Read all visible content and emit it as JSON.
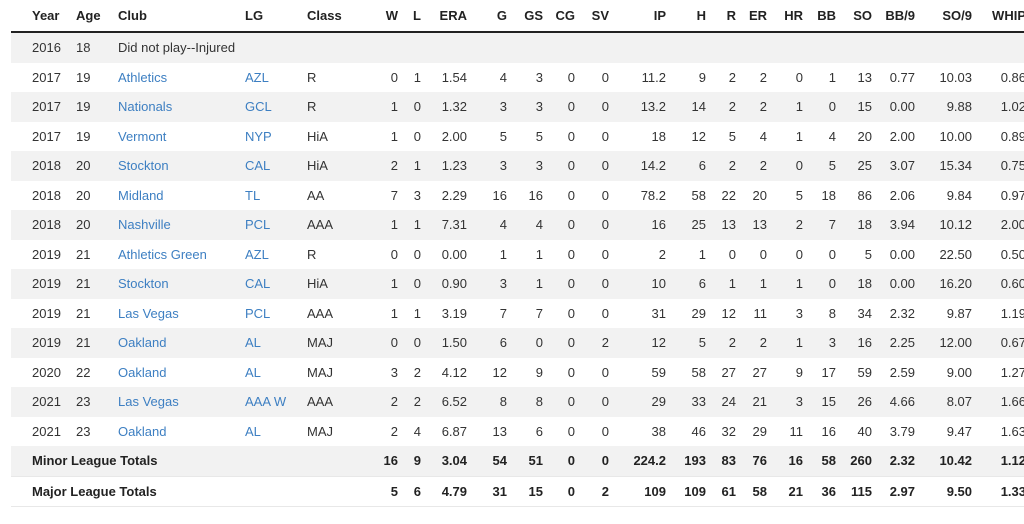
{
  "columns": [
    "Year",
    "Age",
    "Club",
    "LG",
    "Class",
    "W",
    "L",
    "ERA",
    "G",
    "GS",
    "CG",
    "SV",
    "IP",
    "H",
    "R",
    "ER",
    "HR",
    "BB",
    "SO",
    "BB/9",
    "SO/9",
    "WHIP"
  ],
  "rows": [
    {
      "cells": [
        "2016",
        "18",
        "Did not play--Injured",
        "",
        "",
        "",
        "",
        "",
        "",
        "",
        "",
        "",
        "",
        "",
        "",
        "",
        "",
        "",
        "",
        "",
        "",
        ""
      ],
      "linked": false
    },
    {
      "cells": [
        "2017",
        "19",
        "Athletics",
        "AZL",
        "R",
        "0",
        "1",
        "1.54",
        "4",
        "3",
        "0",
        "0",
        "11.2",
        "9",
        "2",
        "2",
        "0",
        "1",
        "13",
        "0.77",
        "10.03",
        "0.86"
      ],
      "linked": true
    },
    {
      "cells": [
        "2017",
        "19",
        "Nationals",
        "GCL",
        "R",
        "1",
        "0",
        "1.32",
        "3",
        "3",
        "0",
        "0",
        "13.2",
        "14",
        "2",
        "2",
        "1",
        "0",
        "15",
        "0.00",
        "9.88",
        "1.02"
      ],
      "linked": true
    },
    {
      "cells": [
        "2017",
        "19",
        "Vermont",
        "NYP",
        "HiA",
        "1",
        "0",
        "2.00",
        "5",
        "5",
        "0",
        "0",
        "18",
        "12",
        "5",
        "4",
        "1",
        "4",
        "20",
        "2.00",
        "10.00",
        "0.89"
      ],
      "linked": true
    },
    {
      "cells": [
        "2018",
        "20",
        "Stockton",
        "CAL",
        "HiA",
        "2",
        "1",
        "1.23",
        "3",
        "3",
        "0",
        "0",
        "14.2",
        "6",
        "2",
        "2",
        "0",
        "5",
        "25",
        "3.07",
        "15.34",
        "0.75"
      ],
      "linked": true
    },
    {
      "cells": [
        "2018",
        "20",
        "Midland",
        "TL",
        "AA",
        "7",
        "3",
        "2.29",
        "16",
        "16",
        "0",
        "0",
        "78.2",
        "58",
        "22",
        "20",
        "5",
        "18",
        "86",
        "2.06",
        "9.84",
        "0.97"
      ],
      "linked": true
    },
    {
      "cells": [
        "2018",
        "20",
        "Nashville",
        "PCL",
        "AAA",
        "1",
        "1",
        "7.31",
        "4",
        "4",
        "0",
        "0",
        "16",
        "25",
        "13",
        "13",
        "2",
        "7",
        "18",
        "3.94",
        "10.12",
        "2.00"
      ],
      "linked": true
    },
    {
      "cells": [
        "2019",
        "21",
        "Athletics Green",
        "AZL",
        "R",
        "0",
        "0",
        "0.00",
        "1",
        "1",
        "0",
        "0",
        "2",
        "1",
        "0",
        "0",
        "0",
        "0",
        "5",
        "0.00",
        "22.50",
        "0.50"
      ],
      "linked": true
    },
    {
      "cells": [
        "2019",
        "21",
        "Stockton",
        "CAL",
        "HiA",
        "1",
        "0",
        "0.90",
        "3",
        "1",
        "0",
        "0",
        "10",
        "6",
        "1",
        "1",
        "1",
        "0",
        "18",
        "0.00",
        "16.20",
        "0.60"
      ],
      "linked": true
    },
    {
      "cells": [
        "2019",
        "21",
        "Las Vegas",
        "PCL",
        "AAA",
        "1",
        "1",
        "3.19",
        "7",
        "7",
        "0",
        "0",
        "31",
        "29",
        "12",
        "11",
        "3",
        "8",
        "34",
        "2.32",
        "9.87",
        "1.19"
      ],
      "linked": true
    },
    {
      "cells": [
        "2019",
        "21",
        "Oakland",
        "AL",
        "MAJ",
        "0",
        "0",
        "1.50",
        "6",
        "0",
        "0",
        "2",
        "12",
        "5",
        "2",
        "2",
        "1",
        "3",
        "16",
        "2.25",
        "12.00",
        "0.67"
      ],
      "linked": true
    },
    {
      "cells": [
        "2020",
        "22",
        "Oakland",
        "AL",
        "MAJ",
        "3",
        "2",
        "4.12",
        "12",
        "9",
        "0",
        "0",
        "59",
        "58",
        "27",
        "27",
        "9",
        "17",
        "59",
        "2.59",
        "9.00",
        "1.27"
      ],
      "linked": true
    },
    {
      "cells": [
        "2021",
        "23",
        "Las Vegas",
        "AAA W",
        "AAA",
        "2",
        "2",
        "6.52",
        "8",
        "8",
        "0",
        "0",
        "29",
        "33",
        "24",
        "21",
        "3",
        "15",
        "26",
        "4.66",
        "8.07",
        "1.66"
      ],
      "linked": true
    },
    {
      "cells": [
        "2021",
        "23",
        "Oakland",
        "AL",
        "MAJ",
        "2",
        "4",
        "6.87",
        "13",
        "6",
        "0",
        "0",
        "38",
        "46",
        "32",
        "29",
        "11",
        "16",
        "40",
        "3.79",
        "9.47",
        "1.63"
      ],
      "linked": true
    }
  ],
  "totals": [
    {
      "label": "Minor League Totals",
      "cells": [
        "16",
        "9",
        "3.04",
        "54",
        "51",
        "0",
        "0",
        "224.2",
        "193",
        "83",
        "76",
        "16",
        "58",
        "260",
        "2.32",
        "10.42",
        "1.12"
      ]
    },
    {
      "label": "Major League Totals",
      "cells": [
        "5",
        "6",
        "4.79",
        "31",
        "15",
        "0",
        "2",
        "109",
        "109",
        "61",
        "58",
        "21",
        "36",
        "115",
        "2.97",
        "9.50",
        "1.33"
      ]
    }
  ],
  "colors": {
    "link": "#3d7fc2",
    "stripe": "#f2f2f2",
    "header_rule": "#222222"
  }
}
